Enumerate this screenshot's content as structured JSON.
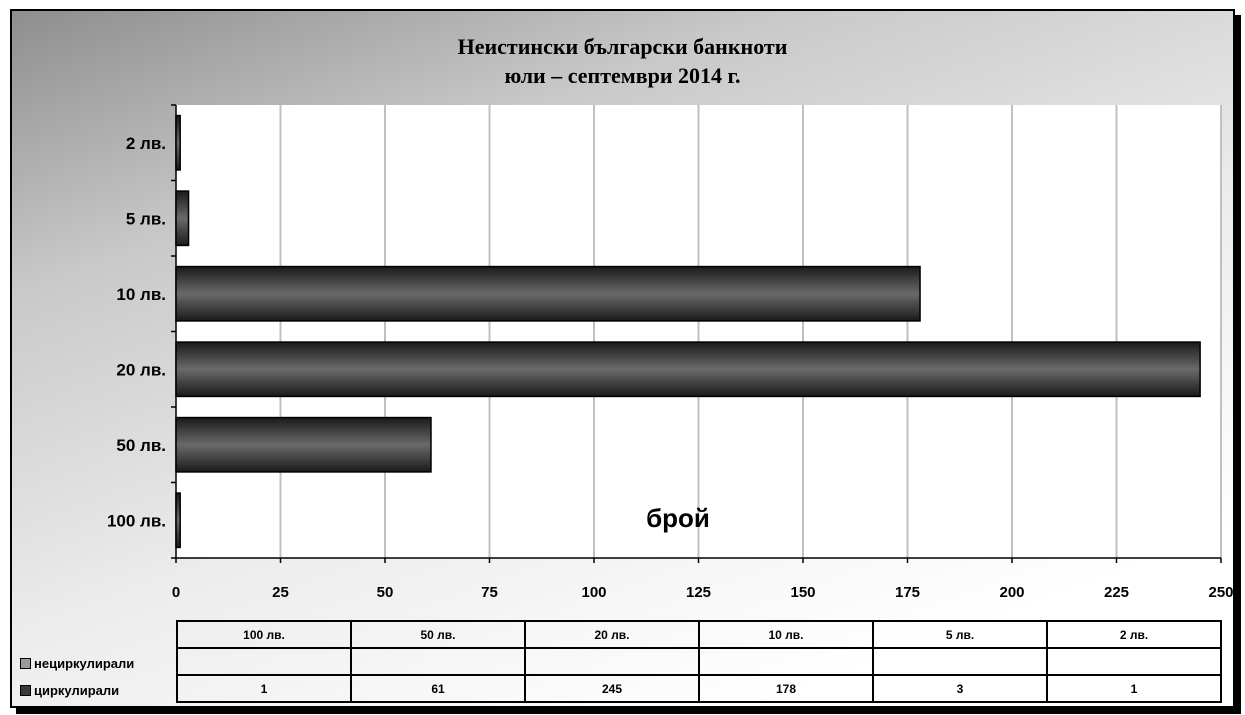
{
  "chart_data": {
    "type": "bar",
    "orientation": "horizontal",
    "title_line1": "Неистински български банкноти",
    "title_line2": "юли – септември 2014 г.",
    "xlabel": "брой",
    "categories": [
      "2 лв.",
      "5 лв.",
      "10 лв.",
      "20 лв.",
      "50 лв.",
      "100 лв."
    ],
    "xlim": [
      0,
      250
    ],
    "xticks": [
      0,
      25,
      50,
      75,
      100,
      125,
      150,
      175,
      200,
      225,
      250
    ],
    "grid": true,
    "series": [
      {
        "name": "нециркулирали",
        "color": "#9a9a9a",
        "values": [
          null,
          null,
          null,
          null,
          null,
          null
        ]
      },
      {
        "name": "циркулирали",
        "color": "#3a3a3a",
        "values": [
          1,
          3,
          178,
          245,
          61,
          1
        ]
      }
    ],
    "table": {
      "headers": [
        "100 лв.",
        "50 лв.",
        "20 лв.",
        "10 лв.",
        "5 лв.",
        "2 лв."
      ],
      "rows": [
        {
          "label": "нециркулирали",
          "values": [
            "",
            "",
            "",
            "",
            "",
            ""
          ]
        },
        {
          "label": "циркулирали",
          "values": [
            "1",
            "61",
            "245",
            "178",
            "3",
            "1"
          ]
        }
      ]
    }
  }
}
